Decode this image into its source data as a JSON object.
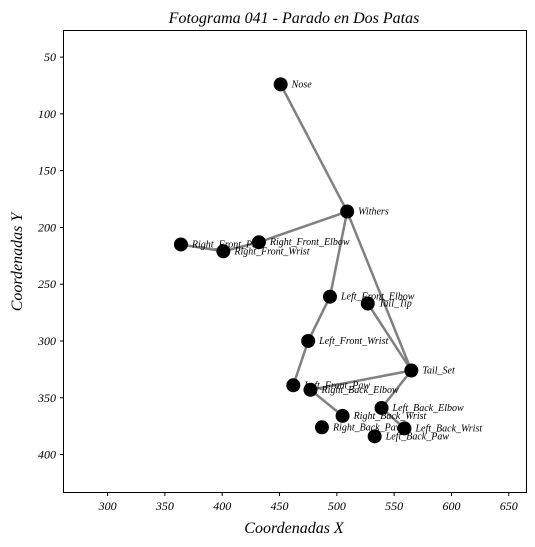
{
  "chart_data": {
    "type": "scatter",
    "title": "Fotograma 041 - Parado en Dos Patas",
    "xlabel": "Coordenadas X",
    "ylabel": "Coordenadas Y",
    "xlim": [
      262,
      665
    ],
    "ylim": [
      433,
      27
    ],
    "y_inverted": true,
    "grid": false,
    "legend": "none",
    "x_ticks": [
      300,
      350,
      400,
      450,
      500,
      550,
      600,
      650
    ],
    "y_ticks": [
      50,
      100,
      150,
      200,
      250,
      300,
      350,
      400
    ],
    "colors": {
      "joint": "#000000",
      "bone": "#808080"
    },
    "points": [
      {
        "name": "Nose",
        "x": 451,
        "y": 74
      },
      {
        "name": "Withers",
        "x": 509,
        "y": 186
      },
      {
        "name": "Right_Front_Elbow",
        "x": 432,
        "y": 213
      },
      {
        "name": "Right_Front_Wrist",
        "x": 401,
        "y": 221
      },
      {
        "name": "Right_Front_Paw",
        "x": 364,
        "y": 215
      },
      {
        "name": "Left_Front_Elbow",
        "x": 494,
        "y": 261
      },
      {
        "name": "Left_Front_Wrist",
        "x": 475,
        "y": 300
      },
      {
        "name": "Left_Front_Paw",
        "x": 462,
        "y": 339
      },
      {
        "name": "Tail_Tip",
        "x": 527,
        "y": 267
      },
      {
        "name": "Tail_Set",
        "x": 565,
        "y": 326
      },
      {
        "name": "Right_Back_Elbow",
        "x": 477,
        "y": 343
      },
      {
        "name": "Right_Back_Wrist",
        "x": 505,
        "y": 366
      },
      {
        "name": "Right_Back_Paw",
        "x": 487,
        "y": 376
      },
      {
        "name": "Left_Back_Elbow",
        "x": 539,
        "y": 359
      },
      {
        "name": "Left_Back_Wrist",
        "x": 559,
        "y": 377
      },
      {
        "name": "Left_Back_Paw",
        "x": 533,
        "y": 384
      }
    ],
    "bones": [
      [
        "Nose",
        "Withers"
      ],
      [
        "Withers",
        "Right_Front_Elbow"
      ],
      [
        "Right_Front_Elbow",
        "Right_Front_Wrist"
      ],
      [
        "Right_Front_Wrist",
        "Right_Front_Paw"
      ],
      [
        "Withers",
        "Left_Front_Elbow"
      ],
      [
        "Left_Front_Elbow",
        "Left_Front_Wrist"
      ],
      [
        "Left_Front_Wrist",
        "Left_Front_Paw"
      ],
      [
        "Withers",
        "Tail_Set"
      ],
      [
        "Tail_Set",
        "Tail_Tip"
      ],
      [
        "Tail_Set",
        "Right_Back_Elbow"
      ],
      [
        "Right_Back_Elbow",
        "Right_Back_Wrist"
      ],
      [
        "Tail_Set",
        "Left_Back_Elbow"
      ],
      [
        "Left_Back_Elbow",
        "Left_Back_Wrist"
      ]
    ]
  }
}
